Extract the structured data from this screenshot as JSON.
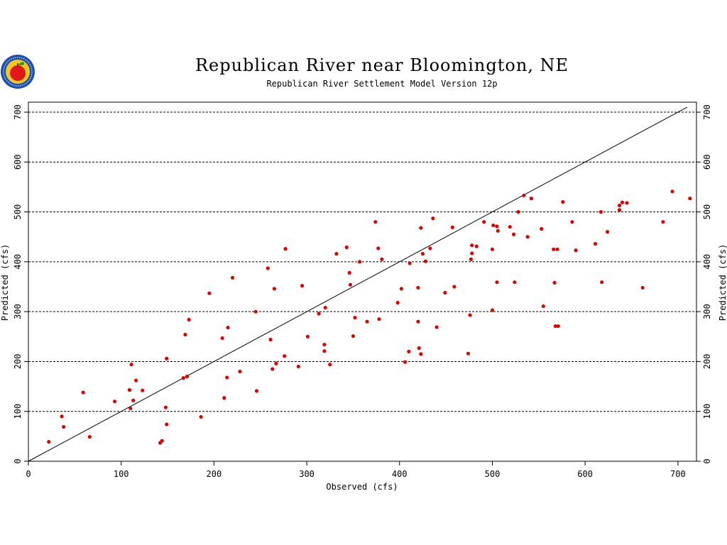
{
  "chart_data": {
    "type": "scatter",
    "title": "Republican River near Bloomington, NE",
    "subtitle": "Republican River Settlement Model Version 12p",
    "xlabel": "Observed (cfs)",
    "ylabel": "Predicted (cfs)",
    "xlim": [
      0,
      720
    ],
    "ylim": [
      0,
      720
    ],
    "xticks": [
      0,
      100,
      200,
      300,
      400,
      500,
      600,
      700
    ],
    "yticks": [
      0,
      100,
      200,
      300,
      400,
      500,
      600,
      700
    ],
    "grid": "horizontal-dashed",
    "reference_line": [
      [
        0,
        0
      ],
      [
        710,
        710
      ]
    ],
    "point_color": "#e00000",
    "points": [
      [
        22,
        39
      ],
      [
        36,
        90
      ],
      [
        38,
        69
      ],
      [
        59,
        138
      ],
      [
        66,
        49
      ],
      [
        93,
        120
      ],
      [
        109,
        143
      ],
      [
        110,
        106
      ],
      [
        111,
        194
      ],
      [
        113,
        122
      ],
      [
        116,
        162
      ],
      [
        123,
        142
      ],
      [
        142,
        37
      ],
      [
        144,
        41
      ],
      [
        148,
        108
      ],
      [
        149,
        74
      ],
      [
        149,
        206
      ],
      [
        167,
        167
      ],
      [
        169,
        254
      ],
      [
        171,
        170
      ],
      [
        173,
        284
      ],
      [
        186,
        89
      ],
      [
        195,
        337
      ],
      [
        209,
        247
      ],
      [
        211,
        127
      ],
      [
        214,
        168
      ],
      [
        215,
        268
      ],
      [
        220,
        368
      ],
      [
        228,
        180
      ],
      [
        245,
        300
      ],
      [
        246,
        141
      ],
      [
        258,
        387
      ],
      [
        261,
        244
      ],
      [
        263,
        185
      ],
      [
        265,
        346
      ],
      [
        267,
        196
      ],
      [
        277,
        426
      ],
      [
        276,
        211
      ],
      [
        291,
        190
      ],
      [
        295,
        352
      ],
      [
        301,
        250
      ],
      [
        313,
        296
      ],
      [
        319,
        221
      ],
      [
        319,
        234
      ],
      [
        320,
        308
      ],
      [
        325,
        194
      ],
      [
        332,
        416
      ],
      [
        343,
        429
      ],
      [
        346,
        378
      ],
      [
        347,
        354
      ],
      [
        350,
        251
      ],
      [
        352,
        288
      ],
      [
        357,
        400
      ],
      [
        365,
        280
      ],
      [
        374,
        480
      ],
      [
        377,
        427
      ],
      [
        378,
        285
      ],
      [
        381,
        405
      ],
      [
        398,
        318
      ],
      [
        402,
        346
      ],
      [
        406,
        199
      ],
      [
        410,
        220
      ],
      [
        411,
        397
      ],
      [
        420,
        280
      ],
      [
        420,
        348
      ],
      [
        421,
        227
      ],
      [
        423,
        468
      ],
      [
        423,
        215
      ],
      [
        425,
        416
      ],
      [
        428,
        401
      ],
      [
        433,
        427
      ],
      [
        436,
        487
      ],
      [
        440,
        269
      ],
      [
        449,
        338
      ],
      [
        457,
        469
      ],
      [
        459,
        350
      ],
      [
        474,
        216
      ],
      [
        476,
        293
      ],
      [
        477,
        405
      ],
      [
        478,
        417
      ],
      [
        478,
        433
      ],
      [
        483,
        431
      ],
      [
        491,
        480
      ],
      [
        500,
        303
      ],
      [
        500,
        425
      ],
      [
        501,
        473
      ],
      [
        505,
        471
      ],
      [
        505,
        359
      ],
      [
        506,
        462
      ],
      [
        519,
        470
      ],
      [
        523,
        455
      ],
      [
        524,
        359
      ],
      [
        528,
        500
      ],
      [
        534,
        533
      ],
      [
        538,
        450
      ],
      [
        542,
        527
      ],
      [
        553,
        466
      ],
      [
        555,
        311
      ],
      [
        566,
        425
      ],
      [
        567,
        358
      ],
      [
        568,
        271
      ],
      [
        570,
        425
      ],
      [
        571,
        271
      ],
      [
        576,
        520
      ],
      [
        586,
        480
      ],
      [
        590,
        423
      ],
      [
        611,
        436
      ],
      [
        617,
        500
      ],
      [
        618,
        359
      ],
      [
        624,
        460
      ],
      [
        637,
        513
      ],
      [
        637,
        504
      ],
      [
        640,
        519
      ],
      [
        645,
        518
      ],
      [
        662,
        348
      ],
      [
        684,
        480
      ],
      [
        694,
        541
      ],
      [
        713,
        527
      ]
    ]
  },
  "logo": {
    "name": "agency-seal-apple-logo",
    "colors": {
      "ring": "#1e50b4",
      "field": "#f2c81e",
      "apple": "#e01818",
      "leaf": "#1a9a2a"
    }
  }
}
